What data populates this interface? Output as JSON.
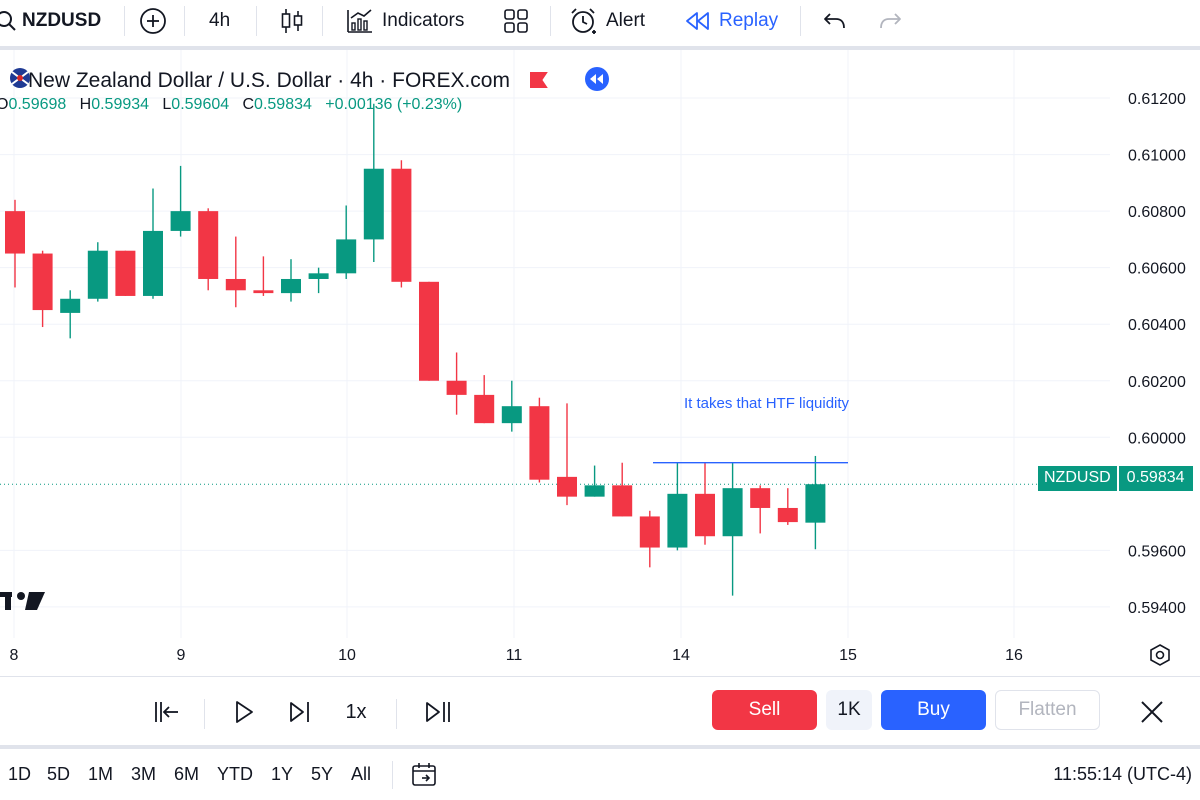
{
  "toolbar": {
    "symbol": "NZDUSD",
    "interval": "4h",
    "indicators_label": "Indicators",
    "alert_label": "Alert",
    "replay_label": "Replay"
  },
  "legend": {
    "title": "New Zealand Dollar / U.S. Dollar · 4h · FOREX.com",
    "open_key": "O",
    "open": "0.59698",
    "high_key": "H",
    "high": "0.59934",
    "low_key": "L",
    "low": "0.59604",
    "close_key": "C",
    "close": "0.59834",
    "change": "+0.00136 (+0.23%)"
  },
  "annotation": "It takes that HTF liquidity",
  "price_tag": {
    "symbol": "NZDUSD",
    "price": "0.59834"
  },
  "replay_controls": {
    "speed": "1x"
  },
  "trade": {
    "sell": "Sell",
    "quantity": "1K",
    "buy": "Buy",
    "flatten": "Flatten"
  },
  "ranges": [
    "1D",
    "5D",
    "1M",
    "3M",
    "6M",
    "YTD",
    "1Y",
    "5Y",
    "All"
  ],
  "clock": "11:55:14 (UTC-4)",
  "colors": {
    "up": "#089981",
    "down": "#f23645",
    "accent": "#2962ff"
  },
  "chart_data": {
    "type": "candlestick",
    "y_ticks": [
      "0.61200",
      "0.61000",
      "0.60800",
      "0.60600",
      "0.60400",
      "0.60200",
      "0.60000",
      "0.59600",
      "0.59400"
    ],
    "y_tick_values": [
      0.612,
      0.61,
      0.608,
      0.606,
      0.604,
      0.602,
      0.6,
      0.596,
      0.594
    ],
    "x_ticks": [
      "8",
      "9",
      "10",
      "11",
      "14",
      "15",
      "16"
    ],
    "ylim": [
      0.5929,
      0.6137
    ],
    "resistance_level": 0.5991,
    "last_price": 0.59834,
    "candles": [
      {
        "o": 0.608,
        "h": 0.6084,
        "l": 0.6053,
        "c": 0.6065
      },
      {
        "o": 0.6065,
        "h": 0.6066,
        "l": 0.6039,
        "c": 0.6045
      },
      {
        "o": 0.6044,
        "h": 0.6052,
        "l": 0.6035,
        "c": 0.6049
      },
      {
        "o": 0.6049,
        "h": 0.6069,
        "l": 0.6048,
        "c": 0.6066
      },
      {
        "o": 0.6066,
        "h": 0.6066,
        "l": 0.605,
        "c": 0.605
      },
      {
        "o": 0.605,
        "h": 0.6088,
        "l": 0.6049,
        "c": 0.6073
      },
      {
        "o": 0.6073,
        "h": 0.6096,
        "l": 0.6071,
        "c": 0.608
      },
      {
        "o": 0.608,
        "h": 0.6081,
        "l": 0.6052,
        "c": 0.6056
      },
      {
        "o": 0.6056,
        "h": 0.6071,
        "l": 0.6046,
        "c": 0.6052
      },
      {
        "o": 0.6052,
        "h": 0.6064,
        "l": 0.605,
        "c": 0.6051
      },
      {
        "o": 0.6051,
        "h": 0.6063,
        "l": 0.6048,
        "c": 0.6056
      },
      {
        "o": 0.6056,
        "h": 0.606,
        "l": 0.6051,
        "c": 0.6058
      },
      {
        "o": 0.6058,
        "h": 0.6082,
        "l": 0.6056,
        "c": 0.607
      },
      {
        "o": 0.607,
        "h": 0.6118,
        "l": 0.6062,
        "c": 0.6095
      },
      {
        "o": 0.6095,
        "h": 0.6098,
        "l": 0.6053,
        "c": 0.6055
      },
      {
        "o": 0.6055,
        "h": 0.6055,
        "l": 0.602,
        "c": 0.602
      },
      {
        "o": 0.602,
        "h": 0.603,
        "l": 0.6008,
        "c": 0.6015
      },
      {
        "o": 0.6015,
        "h": 0.6022,
        "l": 0.6005,
        "c": 0.6005
      },
      {
        "o": 0.6005,
        "h": 0.602,
        "l": 0.6002,
        "c": 0.6011
      },
      {
        "o": 0.6011,
        "h": 0.6014,
        "l": 0.5984,
        "c": 0.5985
      },
      {
        "o": 0.5986,
        "h": 0.6012,
        "l": 0.5976,
        "c": 0.5979
      },
      {
        "o": 0.5979,
        "h": 0.599,
        "l": 0.5979,
        "c": 0.5983
      },
      {
        "o": 0.5983,
        "h": 0.5991,
        "l": 0.5972,
        "c": 0.5972
      },
      {
        "o": 0.5972,
        "h": 0.5974,
        "l": 0.5954,
        "c": 0.5961
      },
      {
        "o": 0.5961,
        "h": 0.5991,
        "l": 0.596,
        "c": 0.598
      },
      {
        "o": 0.598,
        "h": 0.5991,
        "l": 0.5962,
        "c": 0.5965
      },
      {
        "o": 0.5965,
        "h": 0.5991,
        "l": 0.5944,
        "c": 0.5982
      },
      {
        "o": 0.5982,
        "h": 0.5983,
        "l": 0.5966,
        "c": 0.5975
      },
      {
        "o": 0.5975,
        "h": 0.5982,
        "l": 0.5969,
        "c": 0.597
      },
      {
        "o": 0.59698,
        "h": 0.59934,
        "l": 0.59604,
        "c": 0.59834
      }
    ]
  }
}
